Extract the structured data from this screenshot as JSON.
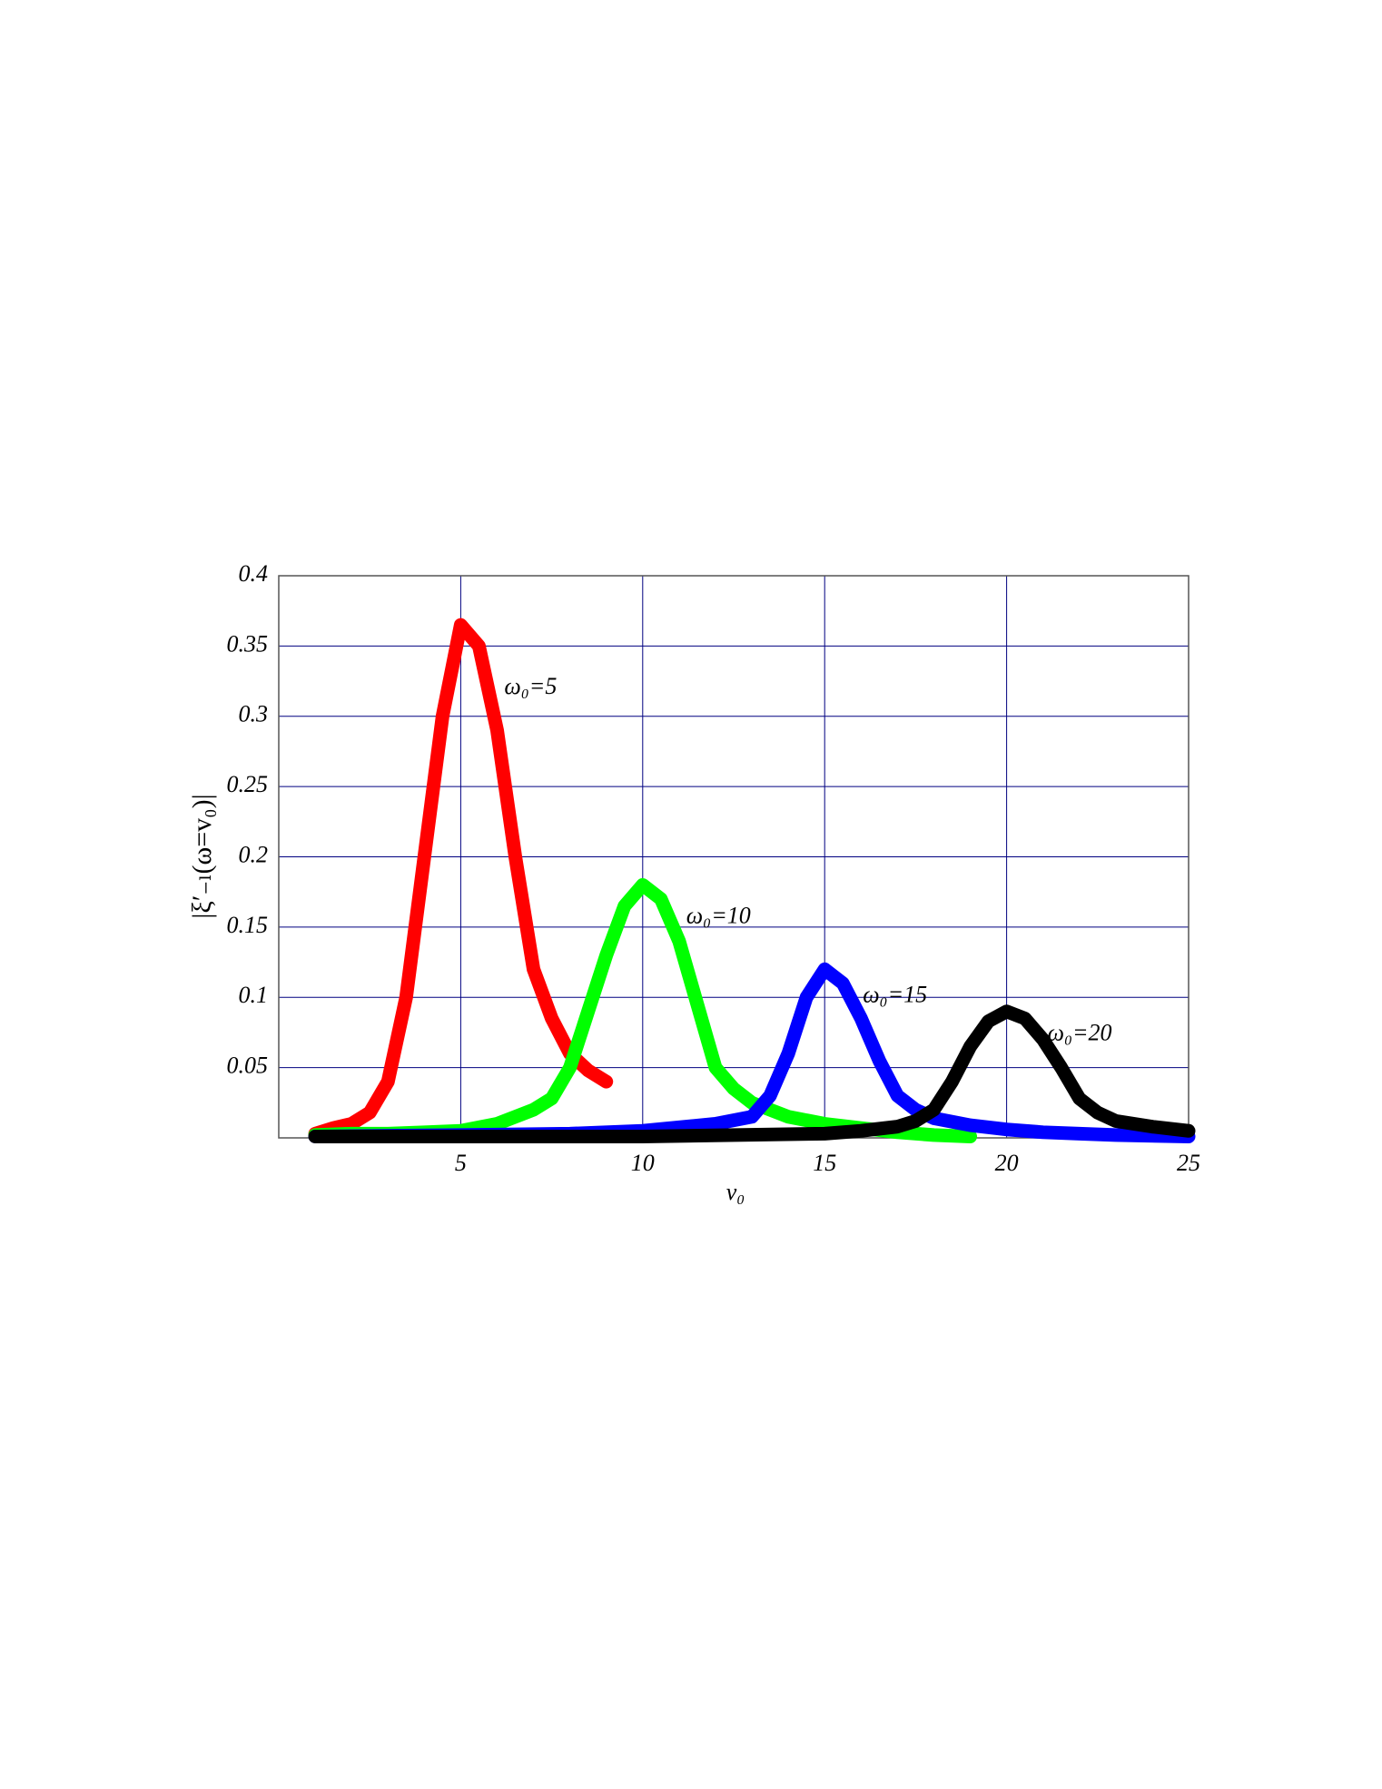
{
  "chart_data": {
    "type": "line",
    "x_label": "v₀",
    "y_label": "|ξ′₋ₗ(ω=v₀)|",
    "xlim": [
      0,
      25
    ],
    "ylim": [
      0,
      0.4
    ],
    "xticks": [
      5,
      10,
      15,
      20,
      25
    ],
    "yticks": [
      0.05,
      0.1,
      0.15,
      0.2,
      0.25,
      0.3,
      0.35,
      0.4
    ],
    "grid": true,
    "series": [
      {
        "name": "ω₀=5",
        "color": "#ff0000",
        "x": [
          1,
          1.5,
          2,
          2.5,
          3,
          3.5,
          4,
          4.5,
          5,
          5.5,
          6,
          6.5,
          7,
          7.5,
          8,
          8.5,
          9
        ],
        "values": [
          0.003,
          0.007,
          0.01,
          0.018,
          0.04,
          0.1,
          0.2,
          0.3,
          0.365,
          0.35,
          0.29,
          0.2,
          0.12,
          0.085,
          0.06,
          0.048,
          0.04
        ]
      },
      {
        "name": "ω₀=10",
        "color": "#00ff00",
        "x": [
          1,
          2,
          3,
          4,
          5,
          6,
          7,
          7.5,
          8,
          8.5,
          9,
          9.5,
          10,
          10.5,
          11,
          11.5,
          12,
          12.5,
          13,
          14,
          15,
          16,
          17,
          18,
          19
        ],
        "values": [
          0.002,
          0.003,
          0.003,
          0.004,
          0.005,
          0.01,
          0.02,
          0.028,
          0.05,
          0.09,
          0.13,
          0.165,
          0.18,
          0.17,
          0.14,
          0.095,
          0.05,
          0.035,
          0.025,
          0.015,
          0.01,
          0.007,
          0.004,
          0.002,
          0.001
        ]
      },
      {
        "name": "ω₀=15",
        "color": "#0000ff",
        "x": [
          1,
          5,
          8,
          10,
          12,
          13,
          13.5,
          14,
          14.5,
          15,
          15.5,
          16,
          16.5,
          17,
          17.5,
          18,
          19,
          20,
          21,
          22,
          23,
          25
        ],
        "values": [
          0.001,
          0.002,
          0.003,
          0.005,
          0.01,
          0.015,
          0.03,
          0.06,
          0.1,
          0.12,
          0.11,
          0.085,
          0.055,
          0.03,
          0.02,
          0.014,
          0.009,
          0.006,
          0.004,
          0.003,
          0.002,
          0.001
        ]
      },
      {
        "name": "ω₀=20",
        "color": "#000000",
        "x": [
          1,
          10,
          15,
          16,
          17,
          17.5,
          18,
          18.5,
          19,
          19.5,
          20,
          20.5,
          21,
          21.5,
          22,
          22.5,
          23,
          24,
          25
        ],
        "values": [
          0.001,
          0.001,
          0.003,
          0.005,
          0.008,
          0.012,
          0.02,
          0.04,
          0.065,
          0.083,
          0.09,
          0.085,
          0.07,
          0.05,
          0.028,
          0.018,
          0.012,
          0.008,
          0.005
        ]
      }
    ]
  }
}
